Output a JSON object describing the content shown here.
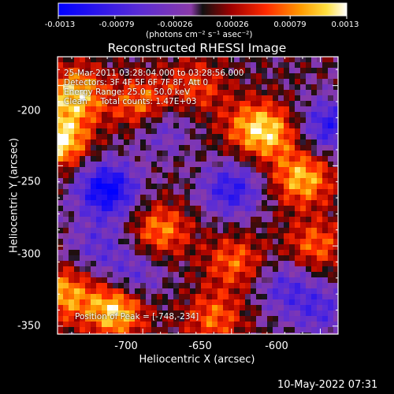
{
  "colorbar": {
    "ticks": [
      "-0.0013",
      "-0.00079",
      "-0.00026",
      "0.00026",
      "0.00079",
      "0.0013"
    ],
    "units_label": "(photons cm⁻² s⁻¹ asec⁻²)"
  },
  "annotations": {
    "line1": "25-Mar-2011 03:28:04.000 to 03:28:56.000",
    "line2": "Detectors: 3F 4F 5F 6F 7F 8F, Att 0",
    "line3": "Energy Range: 25.0 - 50.0 keV",
    "line4": "Clean     Total counts: 1.47E+03",
    "peak": "Position of Peak = [-748,-234]"
  },
  "footer": {
    "timestamp": "10-May-2022 07:31"
  },
  "colors": {
    "background": "#000000",
    "frame": "#ffffff"
  },
  "chart_data": {
    "type": "heatmap",
    "title": "Reconstructed RHESSI Image",
    "xlabel": "Heliocentric X (arcsec)",
    "ylabel": "Heliocentric Y (arcsec)",
    "xlim": [
      -748,
      -590
    ],
    "ylim": [
      -355,
      -182
    ],
    "xticks": [
      -700,
      -650,
      -600
    ],
    "yticks": [
      -200,
      -250,
      -300,
      -350
    ],
    "colorbar_range": [
      -0.0013,
      0.0013
    ],
    "peak_position": [
      -748,
      -234
    ],
    "hotspots": [
      {
        "x": -748,
        "y": -234,
        "value": 0.0013
      },
      {
        "x": -738,
        "y": -205,
        "value": 0.0011
      },
      {
        "x": -715,
        "y": -340,
        "value": 0.0012
      },
      {
        "x": -700,
        "y": -212,
        "value": 0.0009
      },
      {
        "x": -610,
        "y": -258,
        "value": 0.001
      },
      {
        "x": -628,
        "y": -230,
        "value": 0.0008
      },
      {
        "x": -690,
        "y": -290,
        "value": 0.0008
      },
      {
        "x": -648,
        "y": -310,
        "value": 0.0007
      },
      {
        "x": -603,
        "y": -300,
        "value": 0.0007
      },
      {
        "x": -660,
        "y": -345,
        "value": 0.0007
      },
      {
        "x": -640,
        "y": -225,
        "value": 0.0006
      },
      {
        "x": -745,
        "y": -330,
        "value": 0.0009
      },
      {
        "x": -670,
        "y": -200,
        "value": 0.0006
      }
    ],
    "coldspots": [
      {
        "x": -720,
        "y": -265,
        "value": -0.0013
      },
      {
        "x": -650,
        "y": -265,
        "value": -0.0009
      },
      {
        "x": -595,
        "y": -225,
        "value": -0.0009
      },
      {
        "x": -690,
        "y": -225,
        "value": -0.0006
      },
      {
        "x": -705,
        "y": -320,
        "value": -0.0006
      },
      {
        "x": -600,
        "y": -340,
        "value": -0.0006
      },
      {
        "x": -725,
        "y": -300,
        "value": -0.0005
      },
      {
        "x": -620,
        "y": -325,
        "value": -0.0006
      }
    ]
  }
}
